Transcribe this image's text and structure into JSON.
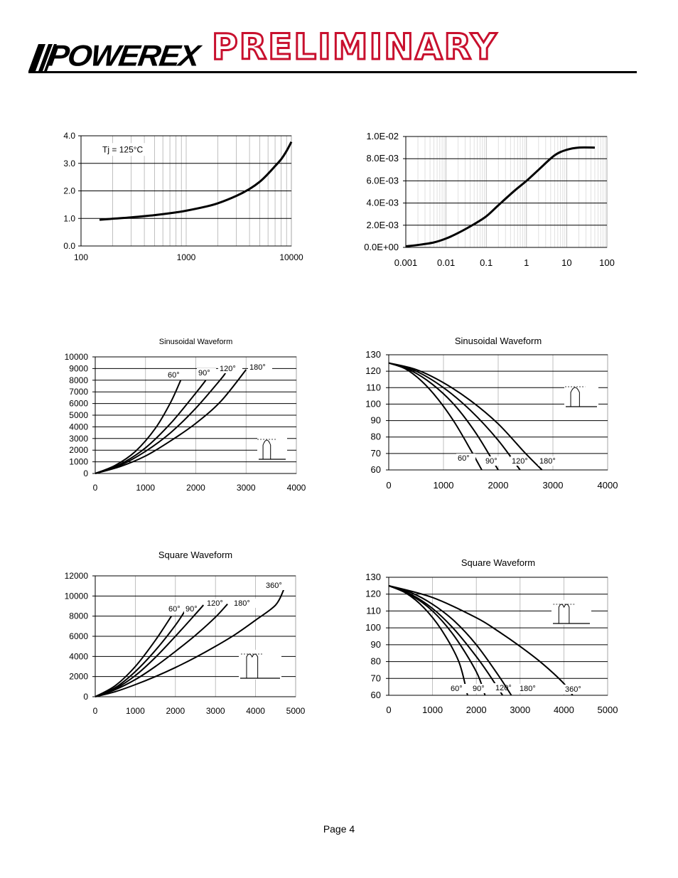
{
  "header": {
    "logo_text": "POWEREX",
    "banner": "PRELIMINARY",
    "banner_color": "#c8102e"
  },
  "footer": {
    "page": "Page 4"
  },
  "chart_data": [
    {
      "id": "c1",
      "type": "line",
      "title": "",
      "xlabel": "",
      "ylabel": "",
      "xscale": "log",
      "xlim": [
        100,
        10000
      ],
      "ylim": [
        0,
        4
      ],
      "xticks": [
        100,
        1000,
        10000
      ],
      "xtick_labels": [
        "100",
        "1000",
        "10000"
      ],
      "yticks": [
        0,
        1,
        2,
        3,
        4
      ],
      "ytick_labels": [
        "0.0",
        "1.0",
        "2.0",
        "3.0",
        "4.0"
      ],
      "grid": true,
      "annotations": [
        {
          "text": "Tj = 125°C",
          "x": 150,
          "y": 3.4
        }
      ],
      "series": [
        {
          "x": [
            150,
            200,
            300,
            500,
            800,
            1000,
            1500,
            2000,
            3000,
            4000,
            5000,
            6000,
            7000,
            8000,
            9000,
            10000
          ],
          "y": [
            0.95,
            0.99,
            1.04,
            1.12,
            1.22,
            1.28,
            1.42,
            1.55,
            1.82,
            2.07,
            2.33,
            2.62,
            2.9,
            3.15,
            3.45,
            3.78
          ]
        }
      ]
    },
    {
      "id": "c2",
      "type": "line",
      "title": "",
      "xlabel": "",
      "ylabel": "",
      "xscale": "log",
      "xlim": [
        0.001,
        100
      ],
      "ylim": [
        0,
        0.01
      ],
      "xticks": [
        0.001,
        0.01,
        0.1,
        1,
        10,
        100
      ],
      "xtick_labels": [
        "0.001",
        "0.01",
        "0.1",
        "1",
        "10",
        "100"
      ],
      "yticks": [
        0,
        0.002,
        0.004,
        0.006,
        0.008,
        0.01
      ],
      "ytick_labels": [
        "0.0E+00",
        "2.0E-03",
        "4.0E-03",
        "6.0E-03",
        "8.0E-03",
        "1.0E-02"
      ],
      "grid": true,
      "series": [
        {
          "x": [
            0.001,
            0.002,
            0.005,
            0.01,
            0.02,
            0.05,
            0.1,
            0.2,
            0.5,
            1,
            2,
            5,
            10,
            20,
            50
          ],
          "y": [
            0.0001,
            0.00022,
            0.00045,
            0.0008,
            0.0013,
            0.0021,
            0.0028,
            0.0038,
            0.0051,
            0.006,
            0.007,
            0.0083,
            0.0088,
            0.009,
            0.009
          ]
        }
      ]
    },
    {
      "id": "c3",
      "type": "line",
      "title": "Sinusoidal Waveform",
      "xlabel": "",
      "ylabel": "",
      "xlim": [
        0,
        4000
      ],
      "ylim": [
        0,
        10000
      ],
      "xticks": [
        0,
        1000,
        2000,
        3000,
        4000
      ],
      "xtick_labels": [
        "0",
        "1000",
        "2000",
        "3000",
        "4000"
      ],
      "yticks": [
        0,
        1000,
        2000,
        3000,
        4000,
        5000,
        6000,
        7000,
        8000,
        9000,
        10000
      ],
      "ytick_labels": [
        "0",
        "1000",
        "2000",
        "3000",
        "4000",
        "5000",
        "6000",
        "7000",
        "8000",
        "9000",
        "10000"
      ],
      "grid": true,
      "series": [
        {
          "name": "60°",
          "x": [
            0,
            400,
            800,
            1200,
            1500,
            1700
          ],
          "y": [
            0,
            700,
            1900,
            3900,
            6100,
            8000
          ]
        },
        {
          "name": "90°",
          "x": [
            0,
            500,
            1000,
            1500,
            2000,
            2200
          ],
          "y": [
            0,
            800,
            2200,
            4300,
            6900,
            8000
          ]
        },
        {
          "name": "120°",
          "x": [
            0,
            500,
            1000,
            1500,
            2000,
            2500,
            2600
          ],
          "y": [
            0,
            700,
            1900,
            3500,
            5600,
            8100,
            8700
          ]
        },
        {
          "name": "180°",
          "x": [
            0,
            500,
            1000,
            1500,
            2000,
            2500,
            3000
          ],
          "y": [
            0,
            600,
            1500,
            2800,
            4300,
            6200,
            8900
          ]
        }
      ]
    },
    {
      "id": "c4",
      "type": "line",
      "title": "Sinusoidal Waveform",
      "xlabel": "",
      "ylabel": "",
      "xlim": [
        0,
        4000
      ],
      "ylim": [
        60,
        130
      ],
      "xticks": [
        0,
        1000,
        2000,
        3000,
        4000
      ],
      "xtick_labels": [
        "0",
        "1000",
        "2000",
        "3000",
        "4000"
      ],
      "yticks": [
        60,
        70,
        80,
        90,
        100,
        110,
        120,
        130
      ],
      "ytick_labels": [
        "60",
        "70",
        "80",
        "90",
        "100",
        "110",
        "120",
        "130"
      ],
      "grid": true,
      "series": [
        {
          "name": "60°",
          "x": [
            0,
            300,
            600,
            900,
            1200,
            1500,
            1700
          ],
          "y": [
            125,
            121.5,
            114,
            103,
            89,
            72,
            60
          ]
        },
        {
          "name": "90°",
          "x": [
            0,
            400,
            800,
            1200,
            1600,
            2000
          ],
          "y": [
            125,
            120.5,
            112,
            99.5,
            82,
            60
          ]
        },
        {
          "name": "120°",
          "x": [
            0,
            500,
            1000,
            1500,
            2000,
            2400
          ],
          "y": [
            125,
            120,
            110,
            96,
            78,
            60
          ]
        },
        {
          "name": "180°",
          "x": [
            0,
            500,
            1000,
            1500,
            2000,
            2500,
            2800
          ],
          "y": [
            125,
            121,
            113,
            102,
            88,
            70,
            60
          ]
        }
      ]
    },
    {
      "id": "c5",
      "type": "line",
      "title": "Square Waveform",
      "xlabel": "",
      "ylabel": "",
      "xlim": [
        0,
        5000
      ],
      "ylim": [
        0,
        12000
      ],
      "xticks": [
        0,
        1000,
        2000,
        3000,
        4000,
        5000
      ],
      "xtick_labels": [
        "0",
        "1000",
        "2000",
        "3000",
        "4000",
        "5000"
      ],
      "yticks": [
        0,
        2000,
        4000,
        6000,
        8000,
        10000,
        12000
      ],
      "ytick_labels": [
        "0",
        "2000",
        "4000",
        "6000",
        "8000",
        "10000",
        "12000"
      ],
      "grid": true,
      "series": [
        {
          "name": "60°",
          "x": [
            0,
            500,
            1000,
            1500,
            1900
          ],
          "y": [
            0,
            1100,
            3000,
            5600,
            8000
          ]
        },
        {
          "name": "90°",
          "x": [
            0,
            500,
            1000,
            1500,
            2000,
            2300
          ],
          "y": [
            0,
            900,
            2500,
            4600,
            7100,
            8900
          ]
        },
        {
          "name": "120°",
          "x": [
            0,
            500,
            1000,
            1500,
            2000,
            2500,
            2700
          ],
          "y": [
            0,
            800,
            2100,
            3900,
            6000,
            8200,
            9100
          ]
        },
        {
          "name": "180°",
          "x": [
            0,
            500,
            1000,
            1500,
            2000,
            2500,
            3000,
            3300
          ],
          "y": [
            0,
            700,
            1700,
            3000,
            4500,
            6100,
            7900,
            9200
          ]
        },
        {
          "name": "360°",
          "x": [
            0,
            500,
            1000,
            1500,
            2000,
            2500,
            3000,
            3500,
            4000,
            4500,
            4700
          ],
          "y": [
            0,
            500,
            1200,
            2000,
            2900,
            3900,
            5000,
            6200,
            7600,
            9100,
            10600
          ]
        }
      ]
    },
    {
      "id": "c6",
      "type": "line",
      "title": "Square Waveform",
      "xlabel": "",
      "ylabel": "",
      "xlim": [
        0,
        5000
      ],
      "ylim": [
        60,
        130
      ],
      "xticks": [
        0,
        1000,
        2000,
        3000,
        4000,
        5000
      ],
      "xtick_labels": [
        "0",
        "1000",
        "2000",
        "3000",
        "4000",
        "5000"
      ],
      "yticks": [
        60,
        70,
        80,
        90,
        100,
        110,
        120,
        130
      ],
      "ytick_labels": [
        "60",
        "70",
        "80",
        "90",
        "100",
        "110",
        "120",
        "130"
      ],
      "grid": true,
      "series": [
        {
          "name": "60°",
          "x": [
            0,
            400,
            800,
            1200,
            1600,
            1800
          ],
          "y": [
            125,
            120.5,
            112,
            99,
            80,
            60
          ]
        },
        {
          "name": "90°",
          "x": [
            0,
            500,
            1000,
            1500,
            2000,
            2200
          ],
          "y": [
            125,
            119.5,
            110,
            95,
            74,
            60
          ]
        },
        {
          "name": "120°",
          "x": [
            0,
            500,
            1000,
            1500,
            2000,
            2300,
            2600
          ],
          "y": [
            125,
            120,
            111.5,
            99,
            83,
            72,
            60
          ]
        },
        {
          "name": "180°",
          "x": [
            0,
            500,
            1000,
            1500,
            2000,
            2500,
            2800
          ],
          "y": [
            125,
            121,
            114,
            104,
            90,
            72,
            60
          ]
        },
        {
          "name": "360°",
          "x": [
            0,
            1000,
            2000,
            2500,
            3000,
            3500,
            4000,
            4200
          ],
          "y": [
            125,
            118,
            106,
            98,
            89,
            79,
            67,
            60
          ]
        }
      ]
    }
  ]
}
